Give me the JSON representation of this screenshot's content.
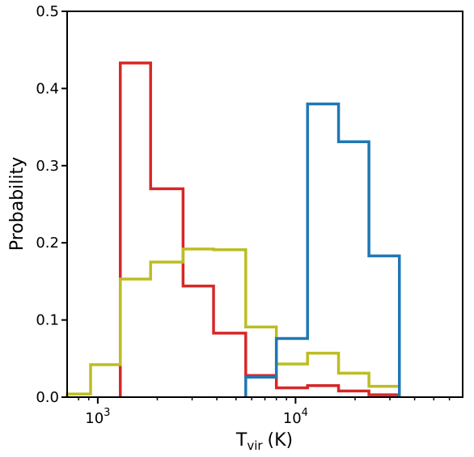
{
  "chart_data": {
    "type": "histogram",
    "xscale": "log",
    "xlim": [
      700,
      70000
    ],
    "ylim": [
      0,
      0.5
    ],
    "grid": false,
    "ylabel": "Probability",
    "xlabel": {
      "main": "T",
      "sub": "vir",
      "unit": "(K)"
    },
    "y_ticks": [
      "0.0",
      "0.1",
      "0.2",
      "0.3",
      "0.4",
      "0.5"
    ],
    "y_tick_values": [
      0,
      0.1,
      0.2,
      0.3,
      0.4,
      0.5
    ],
    "x_ticks": [
      {
        "value": 1000,
        "base": "10",
        "exp": "3"
      },
      {
        "value": 10000,
        "base": "10",
        "exp": "4"
      }
    ],
    "series": [
      {
        "color": "#d62728",
        "bin_edges": [
          1300,
          1850,
          2700,
          3850,
          5600,
          8000,
          11500,
          16500,
          23500,
          33500
        ],
        "values": [
          0.433,
          0.27,
          0.144,
          0.083,
          0.028,
          0.012,
          0.015,
          0.008,
          0.003
        ]
      },
      {
        "color": "#bcbd22",
        "bin_edges": [
          700,
          920,
          1300,
          1850,
          2700,
          3850,
          5600,
          8000,
          11500,
          16500,
          23500,
          33500
        ],
        "values": [
          0.004,
          0.042,
          0.153,
          0.175,
          0.192,
          0.191,
          0.091,
          0.043,
          0.057,
          0.031,
          0.014
        ]
      },
      {
        "color": "#1f77b4",
        "bin_edges": [
          5600,
          8000,
          11500,
          16500,
          23500,
          33500
        ],
        "values": [
          0.026,
          0.076,
          0.38,
          0.331,
          0.183
        ]
      }
    ]
  }
}
